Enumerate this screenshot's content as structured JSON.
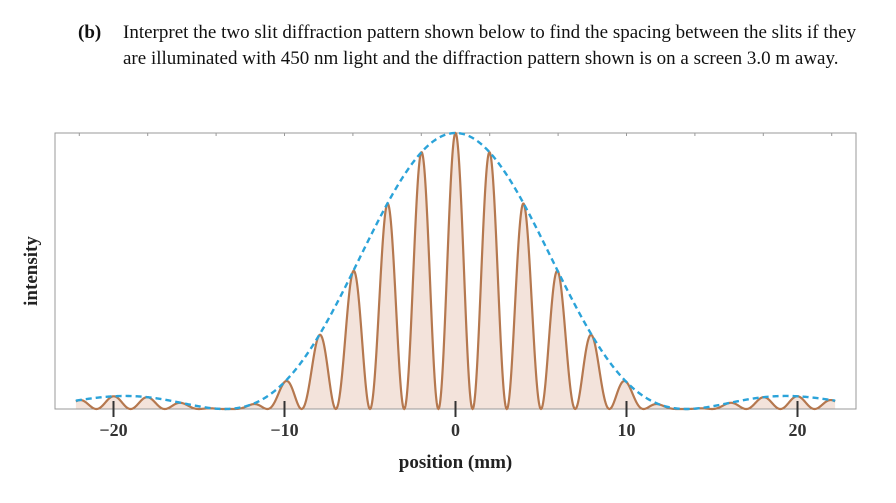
{
  "question": {
    "label": "(b)",
    "text": "Interpret the two slit diffraction pattern shown below to find the spacing between the slits if they are illuminated with 450 nm light and the diffraction pattern shown is on a screen 3.0 m away."
  },
  "chart_data": {
    "type": "line",
    "title": "",
    "xlabel": "position (mm)",
    "ylabel": "intensity",
    "xlim": [
      -22.5,
      22.5
    ],
    "ylim": [
      0,
      1
    ],
    "xticks": [
      -20,
      -10,
      0,
      10,
      20
    ],
    "xtick_labels": [
      "−20",
      "−10",
      "0",
      "10",
      "20"
    ],
    "grid": false,
    "legend": "none",
    "fringe_spacing_mm": 2.0,
    "envelope_first_zero_mm": 13.5,
    "series": [
      {
        "style": "solid, filled",
        "color": "#b5784f",
        "fill": "#f3e3db",
        "peak_x": [
          -20,
          -18,
          -16,
          -10,
          -8,
          -6,
          -4,
          -2,
          0,
          2,
          4,
          6,
          8,
          10,
          16,
          18,
          20
        ],
        "peak_y": [
          0.03,
          0.04,
          0.03,
          0.09,
          0.26,
          0.49,
          0.73,
          0.92,
          1.0,
          0.92,
          0.73,
          0.49,
          0.26,
          0.09,
          0.03,
          0.04,
          0.03
        ]
      },
      {
        "style": "dashed",
        "color": "#2ba3d9"
      }
    ]
  }
}
